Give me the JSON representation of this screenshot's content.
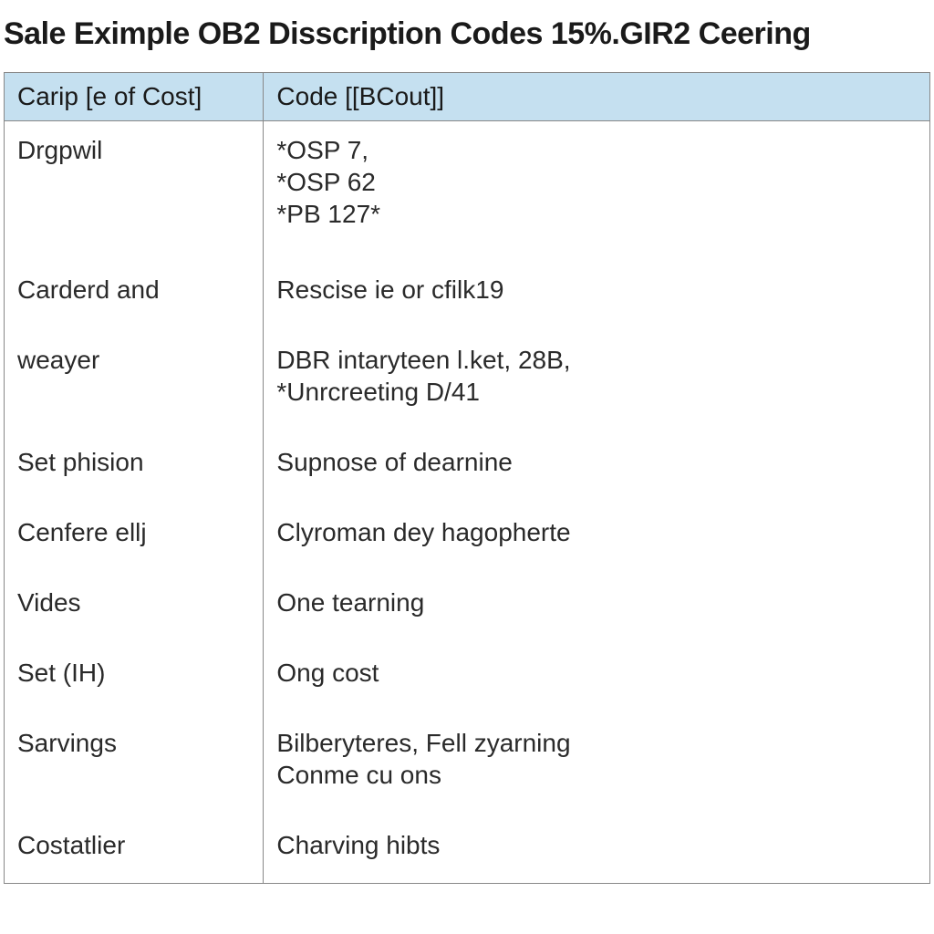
{
  "title": "Sale Eximple OB2 Disscription Codes 15%.GIR2 Ceering",
  "table": {
    "header_bg": "#c5e0f0",
    "border_color": "#888888",
    "text_color": "#2a2a2a",
    "title_color": "#1a1a1a",
    "title_fontsize": 34,
    "cell_fontsize": 28,
    "columns": [
      "Carip [e of Cost]",
      "Code [[BCout]]"
    ],
    "col_widths": [
      "28%",
      "72%"
    ],
    "rows": [
      {
        "c0": "Drgpwil",
        "c1": "*OSP 7,\n*OSP 62\n*PB 127*"
      },
      {
        "c0": "Carderd and",
        "c1": "Rescise ie or cfilk19"
      },
      {
        "c0": "weayer",
        "c1": "DBR intaryteen l.ket, 28B,\n*Unrcreeting D/41"
      },
      {
        "c0": "Set phision",
        "c1": "Supnose of dearnine"
      },
      {
        "c0": "Cenfere ellj",
        "c1": "Clyroman dey hagopherte"
      },
      {
        "c0": "Vides",
        "c1": "One tearning"
      },
      {
        "c0": "Set (IH)",
        "c1": "Ong cost"
      },
      {
        "c0": "Sarvings",
        "c1": "Bilberyteres, Fell zyarning\nConme cu ons"
      },
      {
        "c0": "Costatlier",
        "c1": "Charving hibts"
      }
    ]
  }
}
